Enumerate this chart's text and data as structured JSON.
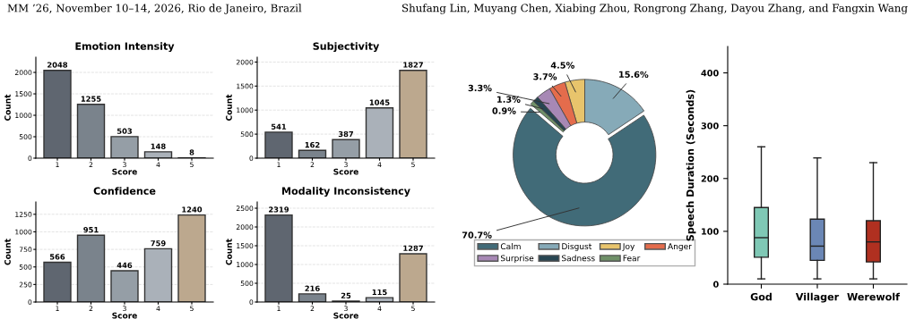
{
  "chart_data": [
    {
      "type": "other",
      "annotations": [
        "MM ’26, November 10–14, 2026, Rio de Janeiro, Brazil",
        "Shufang Lin, Muyang Chen, Xiabing Zhou, Rongrong Zhang, Dayou Zhang, and Fangxin Wang"
      ]
    },
    {
      "type": "bar",
      "title": "Emotion Intensity",
      "xlabel": "Score",
      "ylabel": "Count",
      "categories": [
        "1",
        "2",
        "3",
        "4",
        "5"
      ],
      "values": [
        2048,
        1255,
        503,
        148,
        8
      ],
      "colors": [
        "#5f6670",
        "#7a838c",
        "#959ea6",
        "#aab1b9",
        "#bca88e"
      ],
      "ylim": [
        0,
        2355
      ],
      "yticks": [
        0,
        500,
        1000,
        1500,
        2000
      ],
      "grid": "y",
      "data_labels": true
    },
    {
      "type": "bar",
      "title": "Subjectivity",
      "xlabel": "Score",
      "ylabel": "Count",
      "categories": [
        "1",
        "2",
        "3",
        "4",
        "5"
      ],
      "values": [
        541,
        162,
        387,
        1045,
        1827
      ],
      "colors": [
        "#5f6670",
        "#7a838c",
        "#959ea6",
        "#aab1b9",
        "#bca88e"
      ],
      "ylim": [
        0,
        2101
      ],
      "yticks": [
        0,
        500,
        1000,
        1500,
        2000
      ],
      "grid": "y",
      "data_labels": true
    },
    {
      "type": "bar",
      "title": "Confidence",
      "xlabel": "Score",
      "ylabel": "Count",
      "categories": [
        "1",
        "2",
        "3",
        "4",
        "5"
      ],
      "values": [
        566,
        951,
        446,
        759,
        1240
      ],
      "colors": [
        "#5f6670",
        "#7a838c",
        "#959ea6",
        "#aab1b9",
        "#bca88e"
      ],
      "ylim": [
        0,
        1426
      ],
      "yticks": [
        0,
        250,
        500,
        750,
        1000,
        1250
      ],
      "grid": "y",
      "data_labels": true
    },
    {
      "type": "bar",
      "title": "Modality Inconsistency",
      "xlabel": "Score",
      "ylabel": "Count",
      "categories": [
        "1",
        "2",
        "3",
        "4",
        "5"
      ],
      "values": [
        2319,
        216,
        25,
        115,
        1287
      ],
      "colors": [
        "#5f6670",
        "#7a838c",
        "#959ea6",
        "#aab1b9",
        "#bca88e"
      ],
      "ylim": [
        0,
        2667
      ],
      "yticks": [
        0,
        500,
        1000,
        1500,
        2000,
        2500
      ],
      "grid": "y",
      "data_labels": true
    },
    {
      "type": "donut",
      "categories": [
        "Calm",
        "Disgust",
        "Joy",
        "Anger",
        "Surprise",
        "Sadness",
        "Fear"
      ],
      "values": [
        70.7,
        15.6,
        4.5,
        3.7,
        3.3,
        1.3,
        0.9
      ],
      "colors": [
        "#416b78",
        "#86aab8",
        "#e8c46c",
        "#e46c4c",
        "#a788b5",
        "#274552",
        "#6f9068"
      ],
      "value_labels": [
        "70.7%",
        "15.6%",
        "4.5%",
        "3.7%",
        "3.3%",
        "1.3%",
        "0.9%"
      ],
      "legend": "bottom"
    },
    {
      "type": "box",
      "ylabel": "Speech Duration (Seconds)",
      "categories": [
        "God",
        "Villager",
        "Werewolf"
      ],
      "colors": [
        "#7fc8b5",
        "#6b87b5",
        "#b03020"
      ],
      "boxes": [
        {
          "low": 10,
          "q1": 51,
          "median": 88,
          "q3": 145,
          "high": 260
        },
        {
          "low": 10,
          "q1": 45,
          "median": 72,
          "q3": 123,
          "high": 239
        },
        {
          "low": 10,
          "q1": 42,
          "median": 80,
          "q3": 120,
          "high": 230
        }
      ],
      "ylim": [
        0,
        450
      ],
      "yticks": [
        0,
        100,
        200,
        300,
        400
      ],
      "grid": false
    }
  ]
}
